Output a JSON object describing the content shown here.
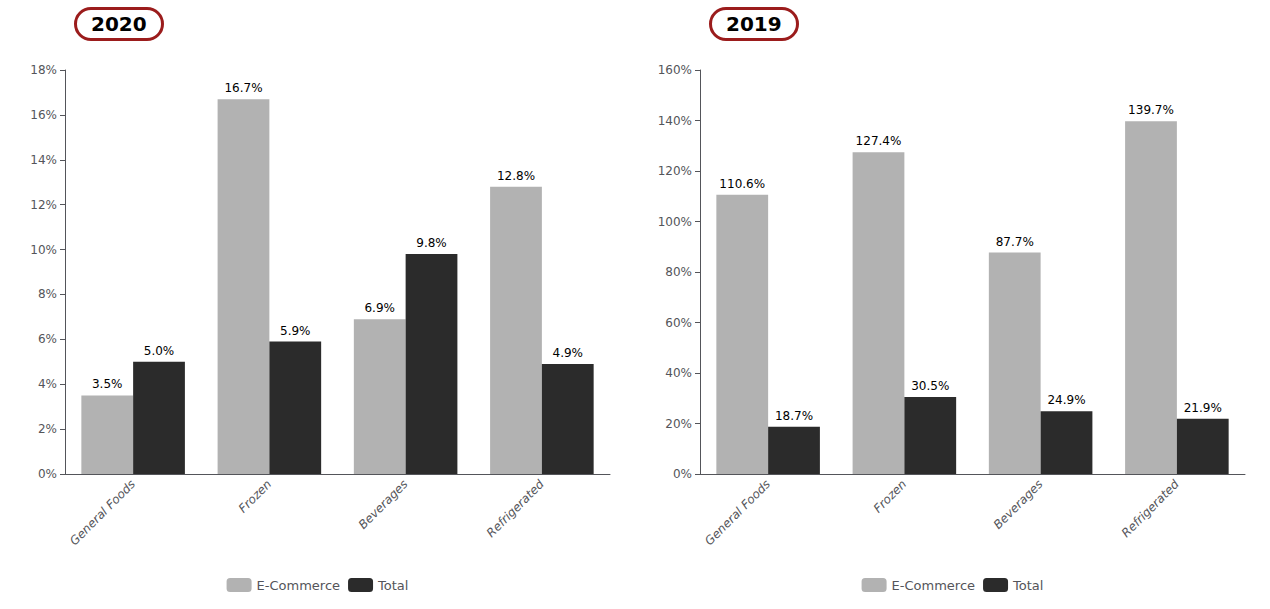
{
  "chart_data": [
    {
      "type": "bar",
      "annotations": [
        {
          "text": "2020",
          "color": "#9b1c1c"
        }
      ],
      "categories": [
        "General Foods",
        "Frozen",
        "Beverages",
        "Refrigerated"
      ],
      "series": [
        {
          "name": "E-Commerce",
          "color": "#b2b2b2",
          "values": [
            0.035,
            0.167,
            0.069,
            0.128
          ],
          "value_labels": [
            "3.5%",
            "16.7%",
            "6.9%",
            "12.8%"
          ]
        },
        {
          "name": "Total",
          "color": "#2b2b2b",
          "values": [
            0.05,
            0.059,
            0.098,
            0.049
          ],
          "value_labels": [
            "5.0%",
            "5.9%",
            "9.8%",
            "4.9%"
          ]
        }
      ],
      "ylim": [
        0,
        0.18
      ],
      "yticks": [
        {
          "value": 0,
          "label": "0%"
        },
        {
          "value": 0.02,
          "label": "2%"
        },
        {
          "value": 0.04,
          "label": "4%"
        },
        {
          "value": 0.06,
          "label": "6%"
        },
        {
          "value": 0.08,
          "label": "8%"
        },
        {
          "value": 0.1,
          "label": "10%"
        },
        {
          "value": 0.12,
          "label": "12%"
        },
        {
          "value": 0.14,
          "label": "14%"
        },
        {
          "value": 0.16,
          "label": "16%"
        },
        {
          "value": 0.18,
          "label": "18%"
        }
      ],
      "grid": false,
      "legend": "bottom",
      "data_labels": true
    },
    {
      "type": "bar",
      "annotations": [
        {
          "text": "2019",
          "color": "#9b1c1c"
        }
      ],
      "categories": [
        "General Foods",
        "Frozen",
        "Beverages",
        "Refrigerated"
      ],
      "series": [
        {
          "name": "E-Commerce",
          "color": "#b2b2b2",
          "values": [
            110.6,
            127.4,
            87.7,
            139.7
          ],
          "value_labels": [
            "110.6%",
            "127.4%",
            "87.7%",
            "139.7%"
          ]
        },
        {
          "name": "Total",
          "color": "#2b2b2b",
          "values": [
            18.7,
            30.5,
            24.9,
            21.9
          ],
          "value_labels": [
            "18.7%",
            "30.5%",
            "24.9%",
            "21.9%"
          ]
        }
      ],
      "ylim": [
        0,
        160
      ],
      "yticks": [
        {
          "value": 0,
          "label": "0%"
        },
        {
          "value": 20,
          "label": "20%"
        },
        {
          "value": 40,
          "label": "40%"
        },
        {
          "value": 60,
          "label": "60%"
        },
        {
          "value": 80,
          "label": "80%"
        },
        {
          "value": 100,
          "label": "100%"
        },
        {
          "value": 120,
          "label": "120%"
        },
        {
          "value": 140,
          "label": "140%"
        },
        {
          "value": 160,
          "label": "160%"
        }
      ],
      "grid": false,
      "legend": "bottom",
      "data_labels": true
    }
  ]
}
